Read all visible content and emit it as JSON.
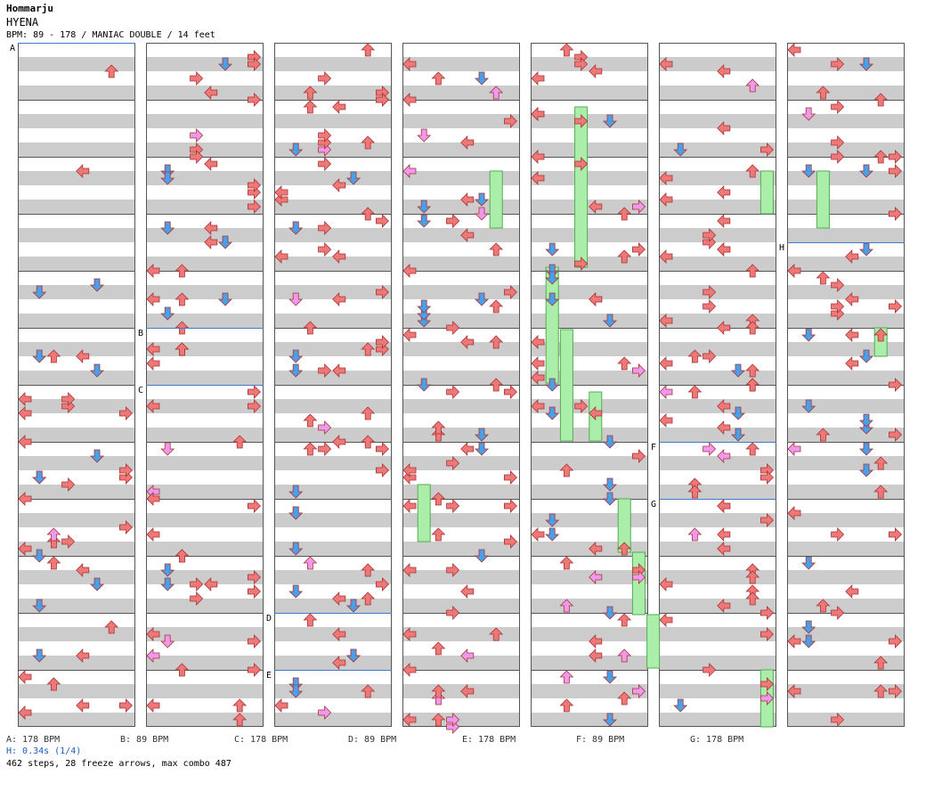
{
  "header": {
    "artist": "Hommarju",
    "title": "HYENA",
    "info": "BPM: 89 - 178 / MANIAC DOUBLE / 14 feet"
  },
  "chart_data": {
    "type": "step-chart",
    "columns": 7,
    "measures_per_column": 12,
    "lanes": 8,
    "lane_colors": [
      "#ee7777",
      "#4a9fe8",
      "#ee7777",
      "#ee7777",
      "#4a9fe8",
      "#ee7777"
    ],
    "freeze_color": "#aaeeaa",
    "pink_arrow_color": "#ee99ee",
    "stripe_color": "#cccccc",
    "bpm_line_color": "#4477cc",
    "bpm_markers": [
      {
        "label": "A",
        "column": 0,
        "measure": 0
      },
      {
        "label": "B",
        "column": 1,
        "measure": 5
      },
      {
        "label": "C",
        "column": 1,
        "measure": 6
      },
      {
        "label": "D",
        "column": 2,
        "measure": 10
      },
      {
        "label": "E",
        "column": 2,
        "measure": 11
      },
      {
        "label": "F",
        "column": 5,
        "measure": 7
      },
      {
        "label": "G",
        "column": 5,
        "measure": 8
      },
      {
        "label": "H",
        "column": 6,
        "measure": 3.5
      }
    ]
  },
  "footer": {
    "bpm_legend": [
      {
        "label": "A: 178 BPM"
      },
      {
        "label": "B: 89 BPM"
      },
      {
        "label": "C: 178 BPM"
      },
      {
        "label": "D: 89 BPM"
      },
      {
        "label": "E: 178 BPM"
      },
      {
        "label": "F: 89 BPM"
      },
      {
        "label": "G: 178 BPM"
      }
    ],
    "hs": "H: 0.34s (1/4)",
    "stats": "462 steps, 28 freeze arrows, max combo 487"
  }
}
